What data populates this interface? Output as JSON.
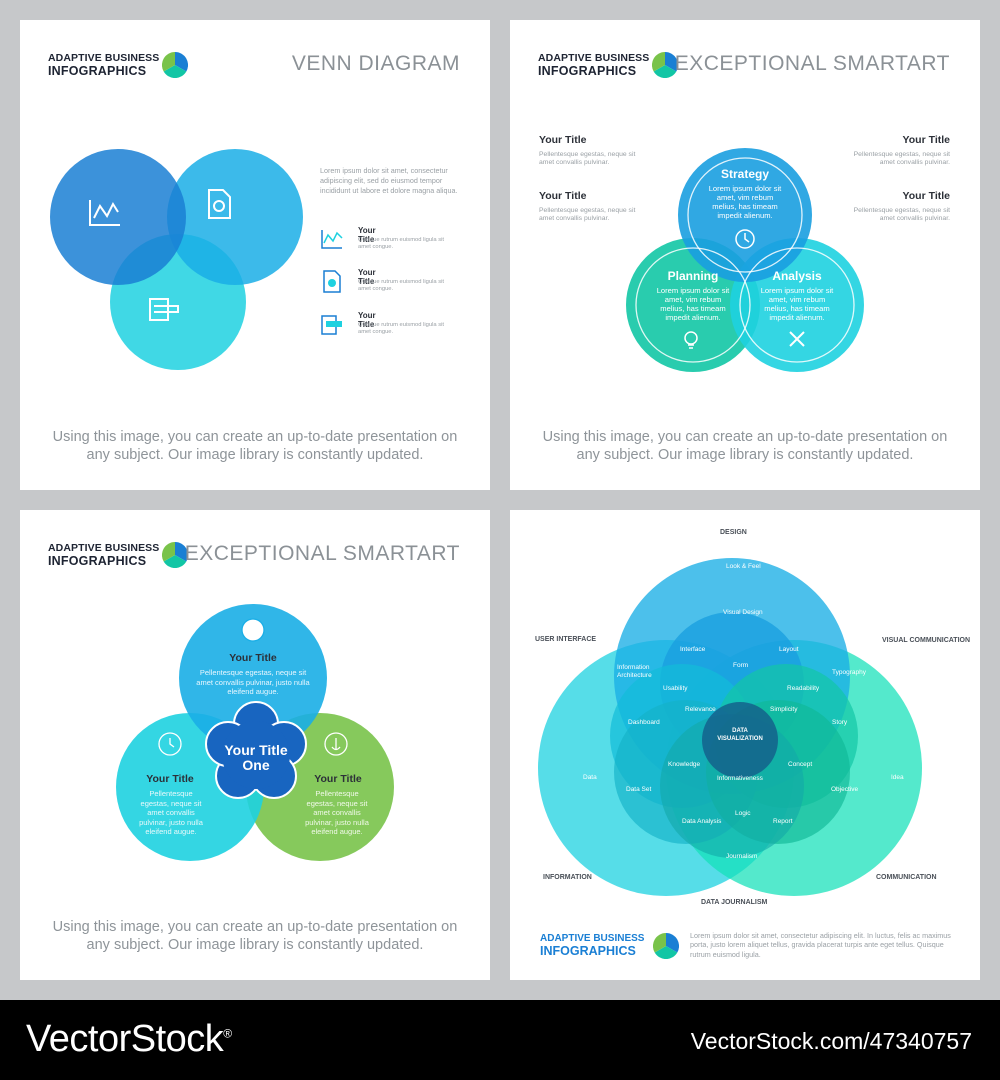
{
  "brand": {
    "line1": "ADAPTIVE BUSINESS",
    "line2": "INFOGRAPHICS"
  },
  "caption": "Using this image, you can create an up-to-date presentation on any subject. Our image library is constantly updated.",
  "colors": {
    "blue": "#1a7fd4",
    "sky": "#1aaee6",
    "cyan": "#1ed1e0",
    "teal": "#12c6a5",
    "green": "#79c34a",
    "dark_blue": "#1865c0"
  },
  "panel1": {
    "title": "VENN DIAGRAM",
    "body": "Lorem ipsum dolor sit amet, consectetur adipiscing elit, sed do eiusmod tempor incididunt ut labore et dolore magna aliqua.",
    "items": [
      {
        "icon": "chart-icon",
        "title": "Your Title",
        "text": "Quisque rutrum euismod ligula sit amet congue."
      },
      {
        "icon": "document-pie-icon",
        "title": "Your Title",
        "text": "Quisque rutrum euismod ligula sit amet congue."
      },
      {
        "icon": "puzzle-icon",
        "title": "Your Title",
        "text": "Quisque rutrum euismod ligula sit amet congue."
      }
    ]
  },
  "panel2": {
    "title": "EXCEPTIONAL SMARTART",
    "side_items": [
      {
        "title": "Your Title",
        "text": "Pellentesque egestas, neque sit amet convallis pulvinar."
      },
      {
        "title": "Your Title",
        "text": "Pellentesque egestas, neque sit amet convallis pulvinar."
      },
      {
        "title": "Your Title",
        "text": "Pellentesque egestas, neque sit amet convallis pulvinar."
      },
      {
        "title": "Your Title",
        "text": "Pellentesque egestas, neque sit amet convallis pulvinar."
      }
    ],
    "circles": [
      {
        "title": "Strategy",
        "text": "Lorem ipsum dolor sit amet, vim rebum melius, has timeam impedit alienum.",
        "icon": "clock-icon"
      },
      {
        "title": "Planning",
        "text": "Lorem ipsum dolor sit amet, vim rebum melius, has timeam impedit alienum.",
        "icon": "lightbulb-icon"
      },
      {
        "title": "Analysis",
        "text": "Lorem ipsum dolor sit amet, vim rebum melius, has timeam impedit alienum.",
        "icon": "tools-icon"
      }
    ]
  },
  "panel3": {
    "title": "EXCEPTIONAL SMARTART",
    "center": "Your Title One",
    "circles": [
      {
        "title": "Your Title",
        "text": "Pellentesque egestas, neque sit amet convallis pulvinar, justo nulla eleifend augue.",
        "icon": "lightbulb-icon"
      },
      {
        "title": "Your Title",
        "text": "Pellentesque egestas, neque sit amet convallis pulvinar, justo nulla eleifend augue.",
        "icon": "clock-icon"
      },
      {
        "title": "Your Title",
        "text": "Pellentesque egestas, neque sit amet convallis pulvinar, justo nulla eleifend augue.",
        "icon": "anchor-icon"
      }
    ]
  },
  "panel4": {
    "outer_labels": {
      "design": "DESIGN",
      "user_interface": "USER INTERFACE",
      "visual_communication": "VISUAL COMMUNICATION",
      "information": "INFORMATION",
      "communication": "COMMUNICATION",
      "data_journalism": "DATA JOURNALISM"
    },
    "inner_labels": {
      "look_feel": "Look & Feel",
      "visual_design": "Visual Design",
      "interface": "Interface",
      "layout": "Layout",
      "form": "Form",
      "info_arch": "Information Architecture",
      "typography": "Typography",
      "usability": "Usability",
      "readability": "Readability",
      "relevance": "Relevance",
      "simplicity": "Simplicity",
      "dashboard": "Dashboard",
      "story": "Story",
      "center": "DATA VISUALIZATION",
      "knowledge": "Knowledge",
      "concept": "Concept",
      "informativeness": "Informativeness",
      "data": "Data",
      "idea": "Idea",
      "data_set": "Data Set",
      "objective": "Objective",
      "logic": "Logic",
      "data_analysis": "Data Analysis",
      "report": "Report",
      "journalism": "Journalism"
    },
    "footer_text": "Lorem ipsum dolor sit amet, consectetur adipiscing elit. In luctus, felis ac maximus porta, justo lorem aliquet tellus, gravida placerat turpis ante eget tellus. Quisque rutrum euismod ligula."
  },
  "footer": {
    "logo": "VectorStock",
    "registered": "®",
    "url": "VectorStock.com/47340757"
  }
}
